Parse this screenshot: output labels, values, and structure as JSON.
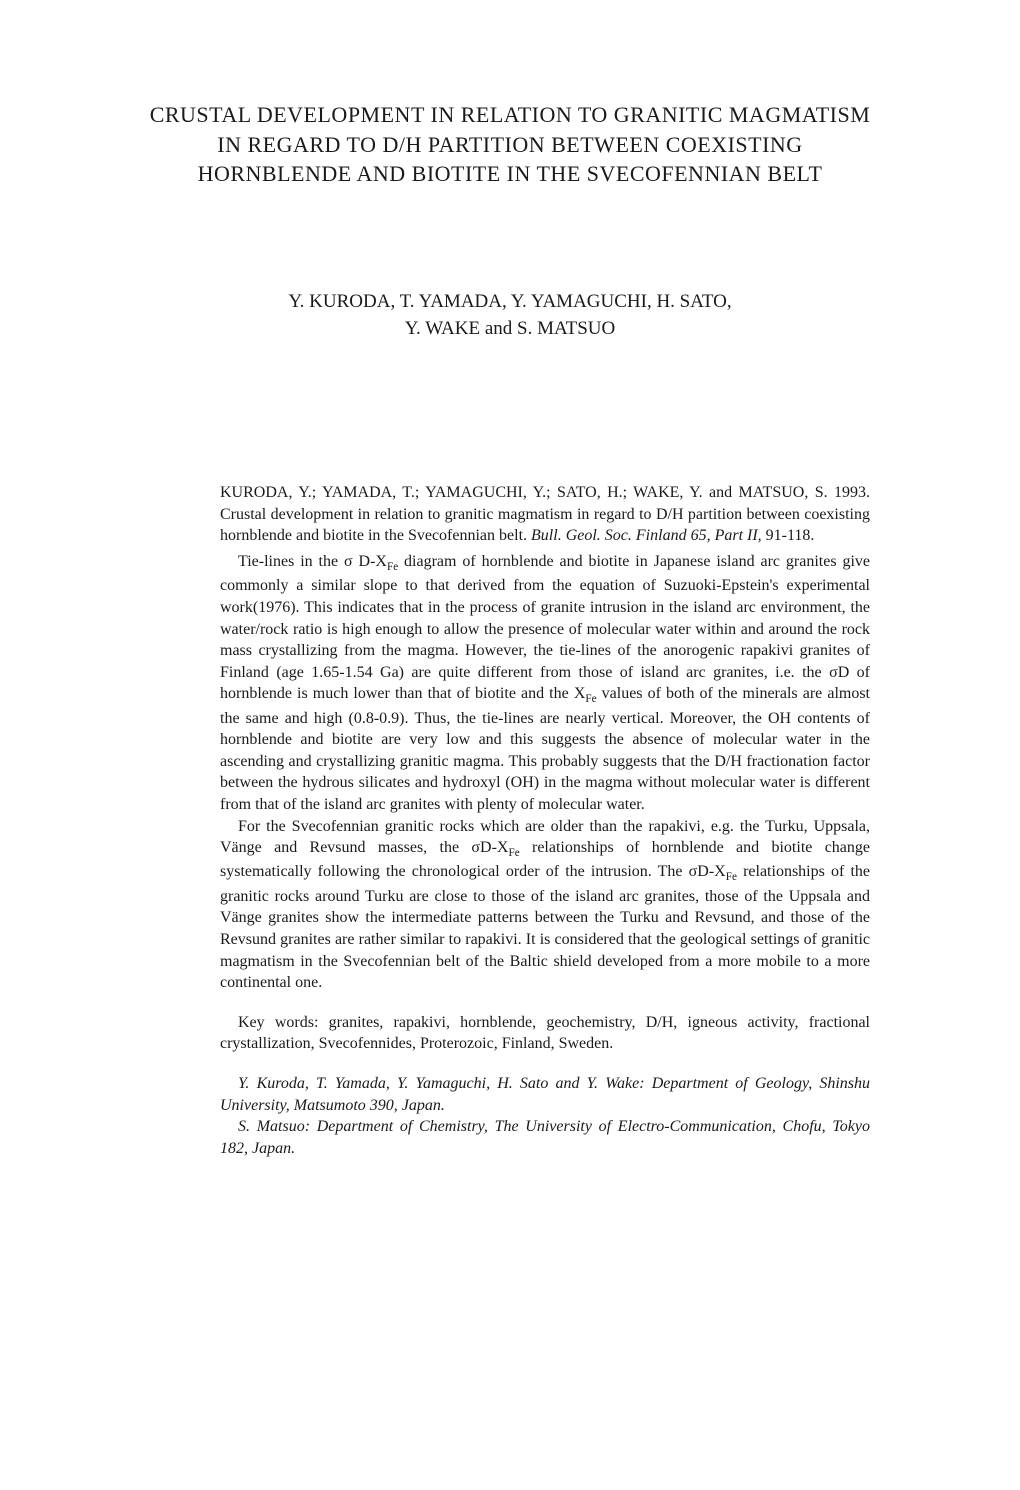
{
  "title": "CRUSTAL DEVELOPMENT IN RELATION TO GRANITIC MAGMATISM IN REGARD TO D/H PARTITION BETWEEN COEXISTING HORNBLENDE AND BIOTITE IN THE SVECOFENNIAN BELT",
  "authors_line1": "Y. KURODA, T. YAMADA, Y. YAMAGUCHI, H. SATO,",
  "authors_line2": "Y. WAKE and S. MATSUO",
  "citation_authors": "KURODA, Y.; YAMADA, T.; YAMAGUCHI, Y.; SATO, H.; WAKE, Y. and MATSUO, S. 1993. Crustal development in relation to granitic magmatism in regard to D/H partition between coexisting hornblende and biotite in the Svecofennian belt. ",
  "citation_journal": "Bull. Geol. Soc. Finland 65, Part II,",
  "citation_pages": " 91-118.",
  "abstract_p1_part1": "Tie-lines in the σ D-X",
  "abstract_p1_sub1": "Fe",
  "abstract_p1_part2": " diagram of hornblende and biotite in Japanese island arc granites give commonly a similar slope to that derived from the equation of Suzuoki-Epstein's experimental work(1976). This indicates that in the process of granite intrusion in the island arc environment, the water/rock ratio is high enough to allow the presence of molecular water within and around the rock mass crystallizing from the magma. However, the tie-lines of the anorogenic rapakivi granites of Finland (age 1.65-1.54 Ga) are quite different from those of island arc granites, i.e. the σD of hornblende is much lower than that of biotite and the X",
  "abstract_p1_sub2": "Fe",
  "abstract_p1_part3": " values of both of the minerals are almost the same and high (0.8-0.9). Thus, the tie-lines are nearly vertical. Moreover, the OH contents of hornblende and biotite are very low and this suggests the absence of molecular water in the ascending and crystallizing granitic magma. This probably suggests that the D/H fractionation factor between the hydrous silicates and hydroxyl (OH) in the magma without molecular water is different from that of the island arc granites with plenty of molecular water.",
  "abstract_p2_part1": "For the Svecofennian granitic rocks which are older than the rapakivi, e.g. the Turku, Uppsala, Vänge and Revsund masses, the σD-X",
  "abstract_p2_sub1": "Fe",
  "abstract_p2_part2": " relationships of hornblende and biotite change systematically following the chronological order of the intrusion. The σD-X",
  "abstract_p2_sub2": "Fe",
  "abstract_p2_part3": " relationships of the granitic rocks around Turku are close to those of the island arc granites, those of the Uppsala and Vänge granites show the intermediate patterns between the Turku and Revsund, and those of the Revsund granites are rather similar to rapakivi. It is considered that the geological settings of granitic magmatism in the Svecofennian belt of the Baltic shield developed from a more mobile to a more continental one.",
  "keywords": "Key words: granites, rapakivi, hornblende, geochemistry, D/H, igneous activity, fractional crystallization, Svecofennides, Proterozoic, Finland, Sweden.",
  "affiliation1": "Y. Kuroda, T. Yamada, Y. Yamaguchi, H. Sato and Y. Wake: Department of Geology, Shinshu University, Matsumoto 390, Japan.",
  "affiliation2": "S. Matsuo: Department of Chemistry, The University of Electro-Communication, Chofu, Tokyo 182, Japan."
}
